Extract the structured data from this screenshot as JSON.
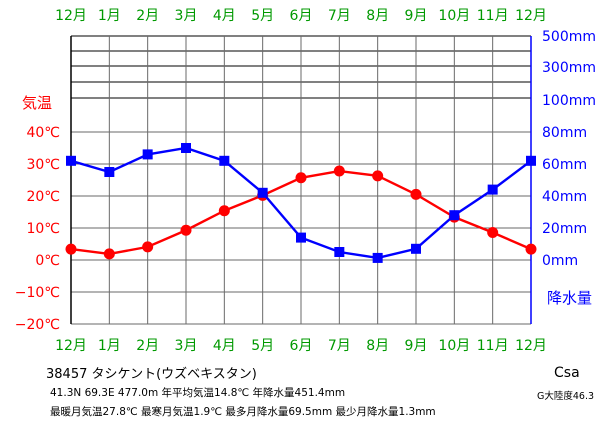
{
  "chart_data": {
    "type": "line",
    "categories": [
      "1月",
      "2月",
      "3月",
      "4月",
      "5月",
      "6月",
      "7月",
      "8月",
      "9月",
      "10月",
      "11月",
      "12月"
    ],
    "x_tick_labels": [
      "12月",
      "1月",
      "2月",
      "3月",
      "4月",
      "5月",
      "6月",
      "7月",
      "8月",
      "9月",
      "10月",
      "11月",
      "12月"
    ],
    "series": [
      {
        "name": "気温",
        "unit": "℃",
        "color": "#ff0000",
        "marker": "circle",
        "axis": "left",
        "values_with_wrap": [
          3.4,
          1.9,
          4.1,
          9.3,
          15.4,
          20.2,
          25.7,
          27.8,
          26.3,
          20.5,
          13.4,
          8.6,
          3.4
        ]
      },
      {
        "name": "降水量",
        "unit": "mm",
        "color": "#0000ff",
        "marker": "square",
        "axis": "right",
        "values_with_wrap": [
          62,
          55,
          66,
          70,
          62,
          42,
          14,
          5,
          1.3,
          7,
          28,
          44,
          62
        ]
      }
    ],
    "left_axis": {
      "label": "気温",
      "ticks": [
        "40℃",
        "30℃",
        "20℃",
        "10℃",
        "0℃",
        "−10℃",
        "−20℃"
      ],
      "tick_values": [
        40,
        30,
        20,
        10,
        0,
        -10,
        -20
      ],
      "range": [
        -20,
        40
      ],
      "color": "#ff0000"
    },
    "right_axis": {
      "label": "降水量",
      "ticks": [
        "500mm",
        "300mm",
        "100mm",
        "80mm",
        "60mm",
        "40mm",
        "20mm",
        "0mm"
      ],
      "linear_ticks": [
        80,
        60,
        40,
        20,
        0
      ],
      "range": [
        0,
        80
      ],
      "color": "#0000ff"
    },
    "grid": true,
    "x_label_color": "#009900"
  },
  "footer": {
    "station": "38457  タシケント(ウズベキスタン)",
    "line1": "41.3N  69.3E  477.0m  年平均気温14.8℃  年降水量451.4mm",
    "line2": "最暖月気温27.8℃  最寒月気温1.9℃  最多月降水量69.5mm  最少月降水量1.3mm",
    "koppen": "Csa",
    "koppen_sub": "G大陸度46.3"
  }
}
